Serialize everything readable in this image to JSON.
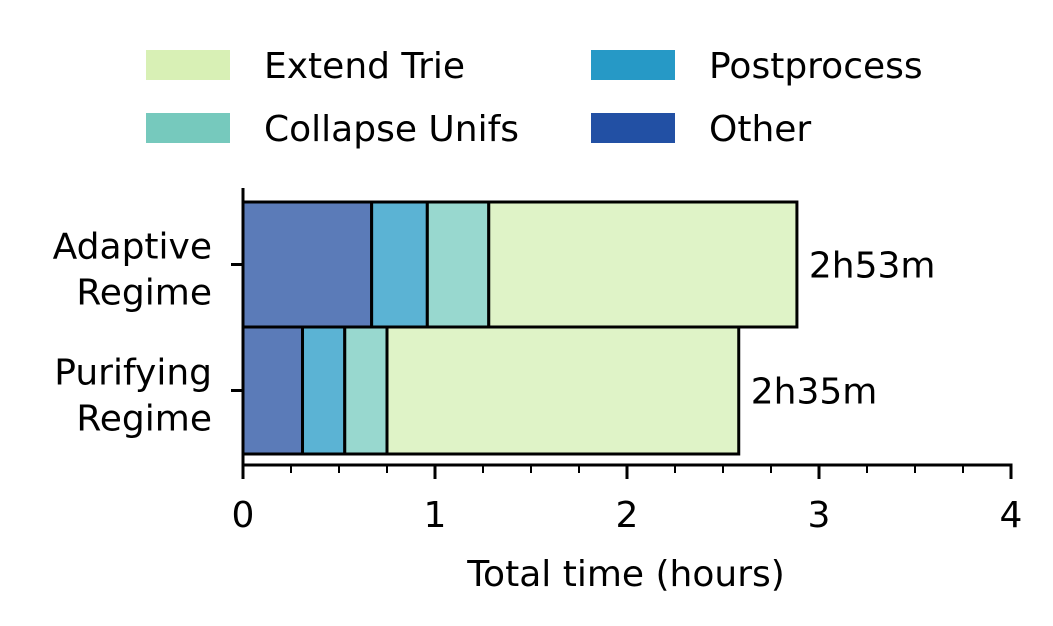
{
  "chart_data": {
    "type": "bar",
    "orientation": "horizontal",
    "stacked": true,
    "categories": [
      "Adaptive\nRegime",
      "Purifying\nRegime"
    ],
    "series": [
      {
        "name": "Other",
        "values": [
          0.67,
          0.31
        ],
        "color": "#5b7bb8"
      },
      {
        "name": "Postprocess",
        "values": [
          0.29,
          0.22
        ],
        "color": "#5bb3d4"
      },
      {
        "name": "Collapse Unifs",
        "values": [
          0.32,
          0.22
        ],
        "color": "#98d8cf"
      },
      {
        "name": "Extend Trie",
        "values": [
          1.605,
          1.832
        ],
        "color": "#dff3c7"
      }
    ],
    "legend_colors": {
      "Extend Trie": "#d8f0b5",
      "Collapse Unifs": "#76c9bd",
      "Postprocess": "#2699c6",
      "Other": "#2250a4"
    },
    "totals": [
      2.883,
      2.583
    ],
    "total_labels": [
      "2h53m",
      "2h35m"
    ],
    "xlabel": "Total time (hours)",
    "xlim": [
      0,
      4
    ],
    "xticks": [
      0,
      1,
      2,
      3,
      4
    ],
    "grid": false,
    "legend_position": "top",
    "legend_order": [
      "Extend Trie",
      "Postprocess",
      "Collapse Unifs",
      "Other"
    ]
  }
}
